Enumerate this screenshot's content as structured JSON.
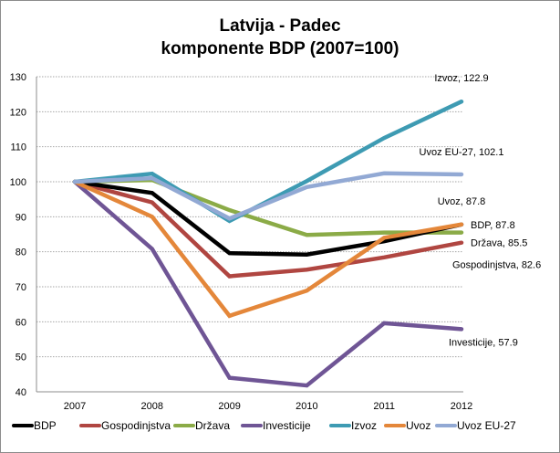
{
  "chart_data": {
    "type": "line",
    "title": [
      "Latvija - Padec",
      "komponente BDP (2007=100)"
    ],
    "xlabel": "",
    "ylabel": "",
    "categories": [
      "2007",
      "2008",
      "2009",
      "2010",
      "2011",
      "2012"
    ],
    "ylim": [
      40,
      130
    ],
    "yticks": [
      "40",
      "50",
      "60",
      "70",
      "80",
      "90",
      "100",
      "110",
      "120",
      "130"
    ],
    "grid": true,
    "legend_position": "bottom",
    "series": [
      {
        "name": "BDP",
        "color": "#000000",
        "values": [
          100,
          96.8,
          79.6,
          79.2,
          83.0,
          87.8
        ],
        "end_label": "BDP, 87.8"
      },
      {
        "name": "Gospodinjstva",
        "color": "#b04641",
        "values": [
          100,
          94.1,
          73.0,
          74.9,
          78.4,
          82.6
        ],
        "end_label": "Gospodinjstva, 82.6"
      },
      {
        "name": "Država",
        "color": "#8bab47",
        "values": [
          100,
          100.5,
          91.9,
          84.8,
          85.5,
          85.5
        ],
        "end_label": "Država, 85.5"
      },
      {
        "name": "Investicije",
        "color": "#6f5595",
        "values": [
          100,
          80.8,
          44.0,
          41.8,
          59.6,
          57.9
        ],
        "end_label": "Investicije, 57.9"
      },
      {
        "name": "Izvoz",
        "color": "#3e9bb3",
        "values": [
          100,
          102.3,
          88.8,
          100.2,
          112.5,
          122.9
        ],
        "end_label": "Izvoz, 122.9"
      },
      {
        "name": "Uvoz",
        "color": "#e4873a",
        "values": [
          100,
          90.0,
          61.7,
          68.9,
          84.0,
          87.8
        ],
        "end_label": "Uvoz, 87.8"
      },
      {
        "name": "Uvoz EU-27",
        "color": "#92a9d4",
        "values": [
          100,
          101.0,
          89.5,
          98.5,
          102.4,
          102.1
        ],
        "end_label": "Uvoz EU-27, 102.1"
      }
    ]
  }
}
